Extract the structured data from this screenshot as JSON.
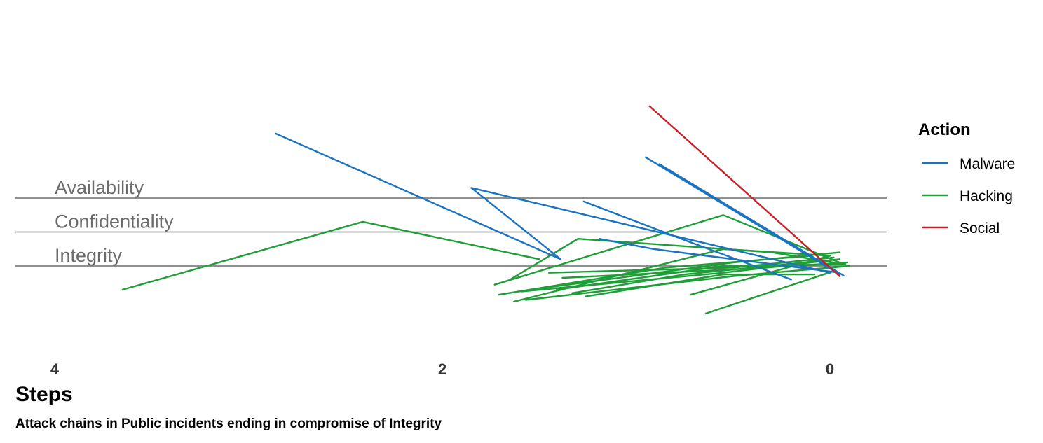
{
  "chart_data": {
    "type": "line",
    "x_title": "Steps",
    "caption": "Attack chains in Public incidents ending in compromise of Integrity",
    "xlim": [
      4,
      0
    ],
    "x_ticks": [
      "4",
      "2",
      "0"
    ],
    "reference_lines": [
      "Availability",
      "Confidentiality",
      "Integrity"
    ],
    "legend": {
      "title": "Action",
      "position": "right",
      "items": [
        {
          "label": "Malware",
          "color": "#1a73c1"
        },
        {
          "label": "Hacking",
          "color": "#1e9e37"
        },
        {
          "label": "Social",
          "color": "#c62028"
        }
      ]
    },
    "series": [
      {
        "action": "Malware",
        "points": [
          [
            2.86,
            3.9
          ],
          [
            1.39,
            0.2
          ],
          [
            1.85,
            2.3
          ],
          [
            0.0,
            -0.2
          ]
        ]
      },
      {
        "action": "Malware",
        "points": [
          [
            1.27,
            1.9
          ],
          [
            0.72,
            0.7
          ],
          [
            0.2,
            -0.4
          ]
        ]
      },
      {
        "action": "Malware",
        "points": [
          [
            1.19,
            0.8
          ],
          [
            0.91,
            0.5
          ],
          [
            -0.05,
            -0.2
          ]
        ]
      },
      {
        "action": "Malware",
        "points": [
          [
            0.95,
            3.2
          ],
          [
            -0.05,
            -0.25
          ]
        ]
      },
      {
        "action": "Malware",
        "points": [
          [
            0.88,
            3.0
          ],
          [
            -0.07,
            -0.28
          ]
        ]
      },
      {
        "action": "Social",
        "points": [
          [
            0.93,
            4.7
          ],
          [
            -0.05,
            -0.3
          ]
        ]
      },
      {
        "action": "Hacking",
        "points": [
          [
            3.65,
            -0.7
          ],
          [
            2.41,
            1.3
          ],
          [
            1.5,
            0.2
          ]
        ]
      },
      {
        "action": "Hacking",
        "points": [
          [
            1.73,
            -0.55
          ],
          [
            0.55,
            1.5
          ],
          [
            -0.05,
            0.1
          ]
        ]
      },
      {
        "action": "Hacking",
        "points": [
          [
            1.71,
            -0.85
          ],
          [
            0.85,
            -0.05
          ],
          [
            0.1,
            0.3
          ]
        ]
      },
      {
        "action": "Hacking",
        "points": [
          [
            1.65,
            -0.4
          ],
          [
            1.3,
            0.8
          ],
          [
            0.3,
            0.4
          ],
          [
            -0.02,
            0.1
          ]
        ]
      },
      {
        "action": "Hacking",
        "points": [
          [
            1.59,
            -0.75
          ],
          [
            0.55,
            -0.2
          ],
          [
            -0.05,
            0.2
          ]
        ]
      },
      {
        "action": "Hacking",
        "points": [
          [
            1.63,
            -1.05
          ],
          [
            0.55,
            0.5
          ],
          [
            0.0,
            0.3
          ]
        ]
      },
      {
        "action": "Hacking",
        "points": [
          [
            1.57,
            -1.0
          ],
          [
            0.5,
            -0.3
          ],
          [
            -0.1,
            0.0
          ]
        ]
      },
      {
        "action": "Hacking",
        "points": [
          [
            1.48,
            -0.65
          ],
          [
            0.5,
            0.1
          ],
          [
            -0.05,
            0.4
          ]
        ]
      },
      {
        "action": "Hacking",
        "points": [
          [
            1.41,
            -0.7
          ],
          [
            0.55,
            0.0
          ],
          [
            -0.08,
            0.05
          ]
        ]
      },
      {
        "action": "Hacking",
        "points": [
          [
            1.38,
            -0.35
          ],
          [
            0.5,
            -0.1
          ],
          [
            -0.09,
            0.1
          ]
        ]
      },
      {
        "action": "Hacking",
        "points": [
          [
            1.33,
            -0.8
          ],
          [
            0.75,
            -0.25
          ],
          [
            0.05,
            0.15
          ]
        ]
      },
      {
        "action": "Hacking",
        "points": [
          [
            1.26,
            -0.9
          ],
          [
            0.55,
            -0.25
          ],
          [
            0.08,
            -0.25
          ]
        ]
      },
      {
        "action": "Hacking",
        "points": [
          [
            1.45,
            -0.2
          ],
          [
            0.5,
            -0.05
          ],
          [
            -0.02,
            0.25
          ]
        ]
      },
      {
        "action": "Hacking",
        "points": [
          [
            0.72,
            -0.85
          ],
          [
            0.0,
            0.3
          ]
        ]
      },
      {
        "action": "Hacking",
        "points": [
          [
            0.64,
            -1.4
          ],
          [
            -0.02,
            -0.15
          ]
        ]
      }
    ]
  }
}
